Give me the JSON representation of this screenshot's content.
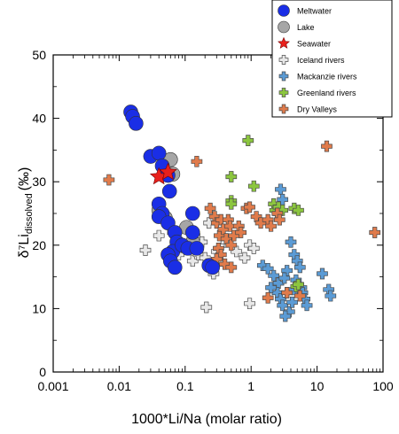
{
  "chart_data": {
    "type": "scatter",
    "x_scale": "log",
    "xlim": [
      0.001,
      100
    ],
    "ylim": [
      0,
      50
    ],
    "xlabel": "1000*Li/Na (molar ratio)",
    "ylabel": {
      "main": "δ⁷Li",
      "sub": "dissolved",
      "unit": "(‰)"
    },
    "x_ticks": [
      0.001,
      0.01,
      0.1,
      1,
      10,
      100
    ],
    "x_tick_labels": [
      "0.001",
      "0.01",
      "0.1",
      "1",
      "10",
      "100"
    ],
    "y_ticks": [
      0,
      10,
      20,
      30,
      40,
      50
    ],
    "y_tick_labels": [
      "0",
      "10",
      "20",
      "30",
      "40",
      "50"
    ],
    "grid": false,
    "legend_position": "top-right",
    "series": [
      {
        "name": "Lake",
        "marker": "circle",
        "color": "#a6a6a6",
        "points": [
          [
            0.06,
            33.5
          ],
          [
            0.065,
            31.2
          ],
          [
            0.05,
            24.3
          ],
          [
            0.105,
            22.8
          ],
          [
            0.13,
            20.5
          ],
          [
            0.04,
            25.5
          ]
        ]
      },
      {
        "name": "Meltwater",
        "marker": "circle",
        "color": "#1a2ee6",
        "points": [
          [
            0.015,
            41.0
          ],
          [
            0.016,
            40.3
          ],
          [
            0.018,
            39.2
          ],
          [
            0.03,
            34.0
          ],
          [
            0.04,
            34.5
          ],
          [
            0.045,
            32.5
          ],
          [
            0.055,
            31.0
          ],
          [
            0.058,
            28.5
          ],
          [
            0.04,
            26.5
          ],
          [
            0.045,
            25.0
          ],
          [
            0.04,
            24.5
          ],
          [
            0.055,
            23.5
          ],
          [
            0.07,
            22.0
          ],
          [
            0.075,
            20.5
          ],
          [
            0.065,
            19.0
          ],
          [
            0.055,
            18.5
          ],
          [
            0.06,
            17.5
          ],
          [
            0.07,
            16.5
          ],
          [
            0.09,
            20.0
          ],
          [
            0.11,
            19.5
          ],
          [
            0.13,
            22.0
          ],
          [
            0.13,
            25.0
          ],
          [
            0.15,
            19.5
          ],
          [
            0.23,
            16.8
          ],
          [
            0.26,
            16.5
          ]
        ]
      },
      {
        "name": "Seawater",
        "marker": "star",
        "color": "#e8201c",
        "points": [
          [
            0.04,
            30.8
          ],
          [
            0.055,
            31.5
          ]
        ]
      },
      {
        "name": "Iceland rivers",
        "marker": "cross",
        "color": "#e8e8e8",
        "points": [
          [
            0.025,
            19.2
          ],
          [
            0.04,
            21.5
          ],
          [
            0.065,
            22.0
          ],
          [
            0.08,
            18.5
          ],
          [
            0.09,
            20.0
          ],
          [
            0.13,
            17.5
          ],
          [
            0.14,
            21.5
          ],
          [
            0.16,
            18.5
          ],
          [
            0.18,
            20.5
          ],
          [
            0.2,
            18.0
          ],
          [
            0.23,
            23.5
          ],
          [
            0.22,
            17.0
          ],
          [
            0.27,
            15.5
          ],
          [
            0.3,
            19.0
          ],
          [
            0.35,
            17.5
          ],
          [
            0.42,
            20.5
          ],
          [
            0.55,
            21.5
          ],
          [
            0.6,
            19.0
          ],
          [
            0.8,
            18.0
          ],
          [
            0.95,
            20.0
          ],
          [
            1.1,
            19.5
          ],
          [
            0.21,
            10.2
          ],
          [
            0.95,
            10.8
          ]
        ]
      },
      {
        "name": "Mackanzie rivers",
        "marker": "cross",
        "color": "#5b9bd5",
        "points": [
          [
            1.5,
            16.8
          ],
          [
            1.8,
            16.3
          ],
          [
            2.2,
            15.2
          ],
          [
            2.6,
            14.0
          ],
          [
            2.8,
            28.8
          ],
          [
            3.0,
            27.2
          ],
          [
            4.0,
            20.5
          ],
          [
            4.5,
            18.5
          ],
          [
            5.0,
            17.5
          ],
          [
            5.5,
            16.5
          ],
          [
            4.8,
            14.5
          ],
          [
            5.2,
            13.8
          ],
          [
            5.8,
            13.3
          ],
          [
            6.0,
            12.5
          ],
          [
            6.5,
            11.5
          ],
          [
            7.0,
            10.5
          ],
          [
            3.5,
            16.0
          ],
          [
            3.2,
            14.8
          ],
          [
            2.5,
            12.5
          ],
          [
            2.8,
            11.5
          ],
          [
            3.0,
            10.5
          ],
          [
            3.5,
            12.5
          ],
          [
            3.8,
            9.5
          ],
          [
            4.2,
            11.0
          ],
          [
            4.5,
            13.0
          ],
          [
            12.0,
            15.5
          ],
          [
            15.0,
            13.0
          ],
          [
            16.0,
            12.0
          ],
          [
            2.0,
            13.3
          ],
          [
            3.3,
            8.8
          ]
        ]
      },
      {
        "name": "Greenland rivers",
        "marker": "cross",
        "color": "#8cc63f",
        "points": [
          [
            0.04,
            24.5
          ],
          [
            0.5,
            30.8
          ],
          [
            0.5,
            27.0
          ],
          [
            0.5,
            26.5
          ],
          [
            0.9,
            36.5
          ],
          [
            1.1,
            29.3
          ],
          [
            2.2,
            26.5
          ],
          [
            2.3,
            25.5
          ],
          [
            2.6,
            26.0
          ],
          [
            3.0,
            25.5
          ],
          [
            4.5,
            25.8
          ],
          [
            5.2,
            25.5
          ],
          [
            4.8,
            13.5
          ],
          [
            5.2,
            13.8
          ],
          [
            2.5,
            25.0
          ]
        ]
      },
      {
        "name": "Dry Valleys",
        "marker": "cross",
        "color": "#e07b4b",
        "points": [
          [
            0.007,
            30.3
          ],
          [
            0.15,
            33.2
          ],
          [
            0.24,
            25.8
          ],
          [
            0.28,
            24.5
          ],
          [
            0.3,
            23.5
          ],
          [
            0.33,
            21.5
          ],
          [
            0.35,
            24.0
          ],
          [
            0.38,
            22.5
          ],
          [
            0.42,
            21.0
          ],
          [
            0.45,
            24.0
          ],
          [
            0.48,
            23.0
          ],
          [
            0.5,
            20.0
          ],
          [
            0.55,
            21.5
          ],
          [
            0.65,
            23.0
          ],
          [
            0.7,
            22.0
          ],
          [
            0.85,
            25.8
          ],
          [
            0.95,
            26.0
          ],
          [
            1.2,
            24.5
          ],
          [
            1.4,
            23.5
          ],
          [
            1.8,
            24.0
          ],
          [
            2.0,
            23.0
          ],
          [
            2.5,
            25.0
          ],
          [
            2.7,
            24.0
          ],
          [
            0.32,
            19.5
          ],
          [
            0.35,
            18.5
          ],
          [
            0.4,
            17.0
          ],
          [
            0.5,
            16.5
          ],
          [
            0.3,
            17.8
          ],
          [
            1.8,
            11.7
          ],
          [
            3.5,
            12.5
          ],
          [
            5.5,
            12.0
          ],
          [
            14.0,
            35.6
          ],
          [
            75.0,
            22.0
          ]
        ]
      }
    ],
    "legend": [
      {
        "label": "Meltwater",
        "marker": "circle",
        "color": "#1a2ee6"
      },
      {
        "label": "Lake",
        "marker": "circle",
        "color": "#a6a6a6"
      },
      {
        "label": "Seawater",
        "marker": "star",
        "color": "#e8201c"
      },
      {
        "label": "Iceland rivers",
        "marker": "cross",
        "color": "#e8e8e8"
      },
      {
        "label": "Mackanzie rivers",
        "marker": "cross",
        "color": "#5b9bd5"
      },
      {
        "label": "Greenland rivers",
        "marker": "cross",
        "color": "#8cc63f"
      },
      {
        "label": "Dry Valleys",
        "marker": "cross",
        "color": "#e07b4b"
      }
    ]
  }
}
